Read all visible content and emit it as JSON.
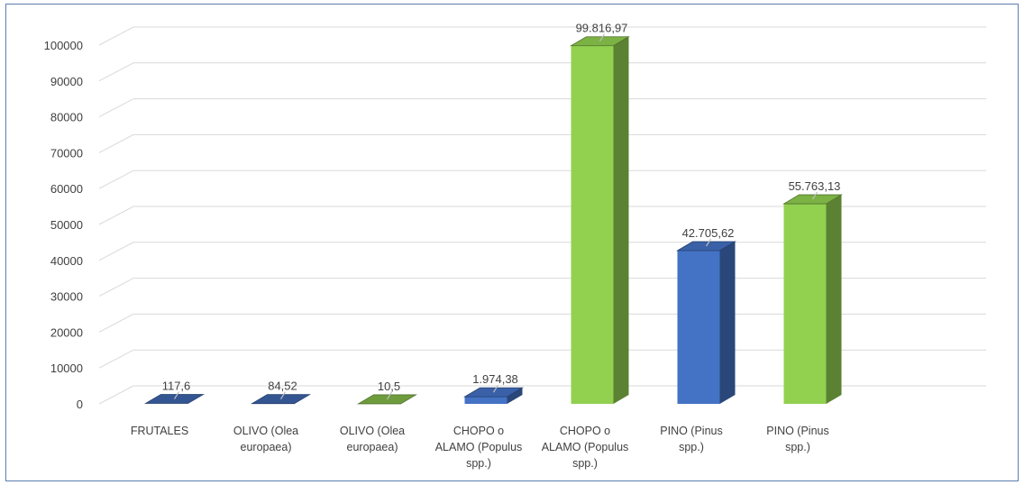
{
  "chart_data": {
    "type": "bar",
    "title": "",
    "xlabel": "",
    "ylabel": "",
    "ylim": [
      0,
      100000
    ],
    "yticks": [
      0,
      10000,
      20000,
      30000,
      40000,
      50000,
      60000,
      70000,
      80000,
      90000,
      100000
    ],
    "grid": true,
    "legend": "none",
    "categories": [
      [
        "FRUTALES"
      ],
      [
        "OLIVO (Olea",
        "europaea)"
      ],
      [
        "OLIVO (Olea",
        "europaea)"
      ],
      [
        "CHOPO o",
        "ALAMO (Populus",
        "spp.)"
      ],
      [
        "CHOPO o",
        "ALAMO (Populus",
        "spp.)"
      ],
      [
        "PINO (Pinus",
        "spp.)"
      ],
      [
        "PINO (Pinus",
        "spp.)"
      ]
    ],
    "values": [
      117.6,
      84.52,
      10.5,
      1974.38,
      99816.97,
      42705.62,
      55763.13
    ],
    "data_labels": [
      "117,6",
      "84,52",
      "10,5",
      "1.974,38",
      "99.816,97",
      "42.705,62",
      "55.763,13"
    ],
    "bar_colors": [
      "#4472c4",
      "#4472c4",
      "#92d050",
      "#4472c4",
      "#92d050",
      "#4472c4",
      "#92d050"
    ]
  }
}
